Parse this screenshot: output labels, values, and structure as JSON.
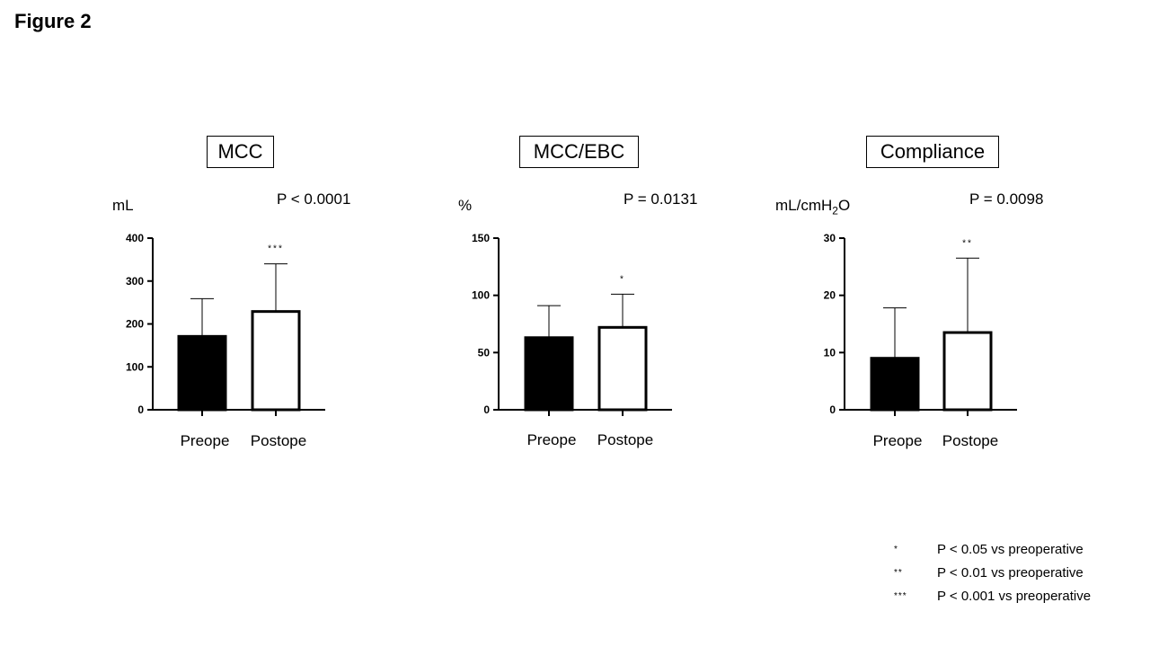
{
  "figure_title": "Figure 2",
  "chart_data": [
    {
      "type": "bar",
      "title": "MCC",
      "ylabel": "mL",
      "pvalue": "P < 0.0001",
      "categories": [
        "Preope",
        "Postope"
      ],
      "values": [
        171,
        229
      ],
      "error_upper": [
        259,
        340
      ],
      "significance": [
        "",
        "***"
      ],
      "ylim": [
        0,
        400
      ],
      "yticks": [
        0,
        100,
        200,
        300,
        400
      ],
      "bar_fills": [
        "#000000",
        "#ffffff"
      ]
    },
    {
      "type": "bar",
      "title": "MCC/EBC",
      "ylabel": "%",
      "pvalue": "P = 0.0131",
      "categories": [
        "Preope",
        "Postope"
      ],
      "values": [
        63,
        72
      ],
      "error_upper": [
        91,
        101
      ],
      "significance": [
        "",
        "*"
      ],
      "ylim": [
        0,
        150
      ],
      "yticks": [
        0,
        50,
        100,
        150
      ],
      "bar_fills": [
        "#000000",
        "#ffffff"
      ]
    },
    {
      "type": "bar",
      "title": "Compliance",
      "ylabel_main": "mL/cmH",
      "ylabel_sub": "2",
      "ylabel_tail": "O",
      "pvalue": "P = 0.0098",
      "categories": [
        "Preope",
        "Postope"
      ],
      "values": [
        9,
        13.5
      ],
      "error_upper": [
        17.8,
        26.5
      ],
      "significance": [
        "",
        "**"
      ],
      "ylim": [
        0,
        30
      ],
      "yticks": [
        0,
        10,
        20,
        30
      ],
      "bar_fills": [
        "#000000",
        "#ffffff"
      ]
    }
  ],
  "legend": [
    {
      "symbol": "*",
      "text": "P < 0.05 vs preoperative"
    },
    {
      "symbol": "**",
      "text": "P < 0.01 vs preoperative"
    },
    {
      "symbol": "***",
      "text": "P < 0.001 vs preoperative"
    }
  ]
}
